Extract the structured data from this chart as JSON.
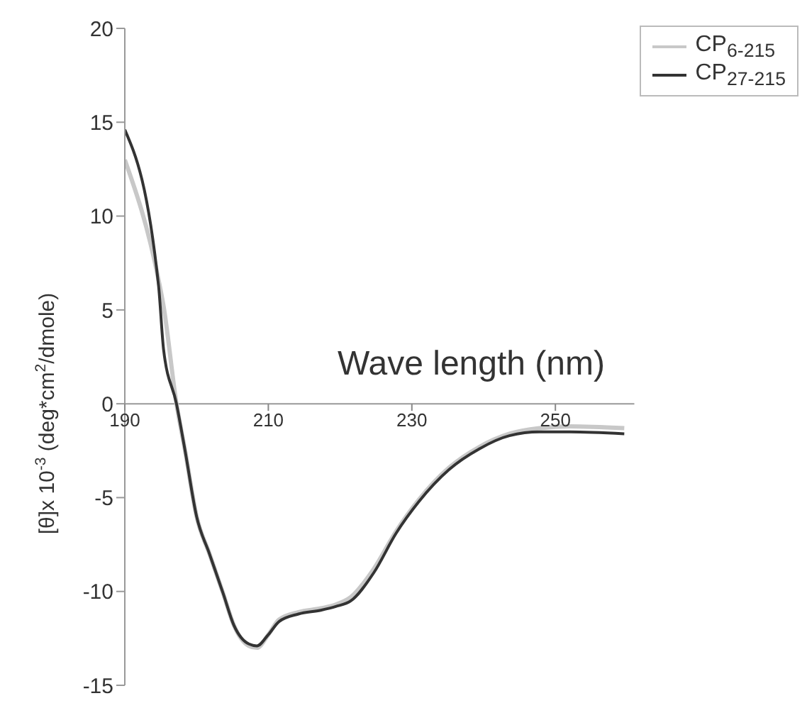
{
  "chart_data": {
    "type": "line",
    "xlabel": "Wave length (nm)",
    "ylabel": "[θ]x 10$^{-3}$ (deg*cm$^{2}$/dmole)",
    "xlim": [
      190,
      261
    ],
    "xticks": [
      190,
      210,
      230,
      250
    ],
    "ylim": [
      -15,
      20
    ],
    "yticks": [
      -15,
      -10,
      -5,
      0,
      5,
      10,
      15,
      20
    ],
    "grid": false,
    "legend": "top right",
    "marker": "none",
    "line_style": "solid",
    "series": [
      {
        "name": "CP$_{6-215}$",
        "color": "#c8c8c8",
        "x": [
          190,
          194.7,
          195.4,
          197.2,
          198.4,
          200,
          201.8,
          203.7,
          205.2,
          207.3,
          208.4,
          210,
          211.5,
          214.2,
          217.3,
          219.4,
          221.5,
          224.7,
          227.8,
          231,
          235.2,
          239.4,
          243.6,
          247.8,
          252,
          259.6
        ],
        "values": [
          13.0,
          6.6,
          5.2,
          0,
          -2.5,
          -6.0,
          -8.0,
          -10.1,
          -11.8,
          -12.9,
          -13.0,
          -12.3,
          -11.5,
          -11.1,
          -10.9,
          -10.7,
          -10.3,
          -8.8,
          -6.8,
          -5.1,
          -3.4,
          -2.3,
          -1.6,
          -1.3,
          -1.2,
          -1.3
        ]
      },
      {
        "name": "CP$_{27-215}$",
        "color": "#333333",
        "x": [
          190,
          194.7,
          195.4,
          197.2,
          198.4,
          200,
          201.8,
          203.7,
          205.2,
          207.3,
          208.4,
          210,
          211.5,
          214.2,
          217.3,
          219.4,
          221.5,
          224.7,
          227.8,
          231,
          235.2,
          239.4,
          243.6,
          247.8,
          252,
          259.6
        ],
        "values": [
          14.6,
          6.3,
          2.9,
          0,
          -2.5,
          -6.0,
          -8.0,
          -10.1,
          -11.8,
          -12.8,
          -12.9,
          -12.3,
          -11.6,
          -11.2,
          -11.0,
          -10.8,
          -10.5,
          -9.0,
          -6.9,
          -5.2,
          -3.5,
          -2.4,
          -1.7,
          -1.5,
          -1.5,
          -1.6
        ]
      }
    ]
  }
}
